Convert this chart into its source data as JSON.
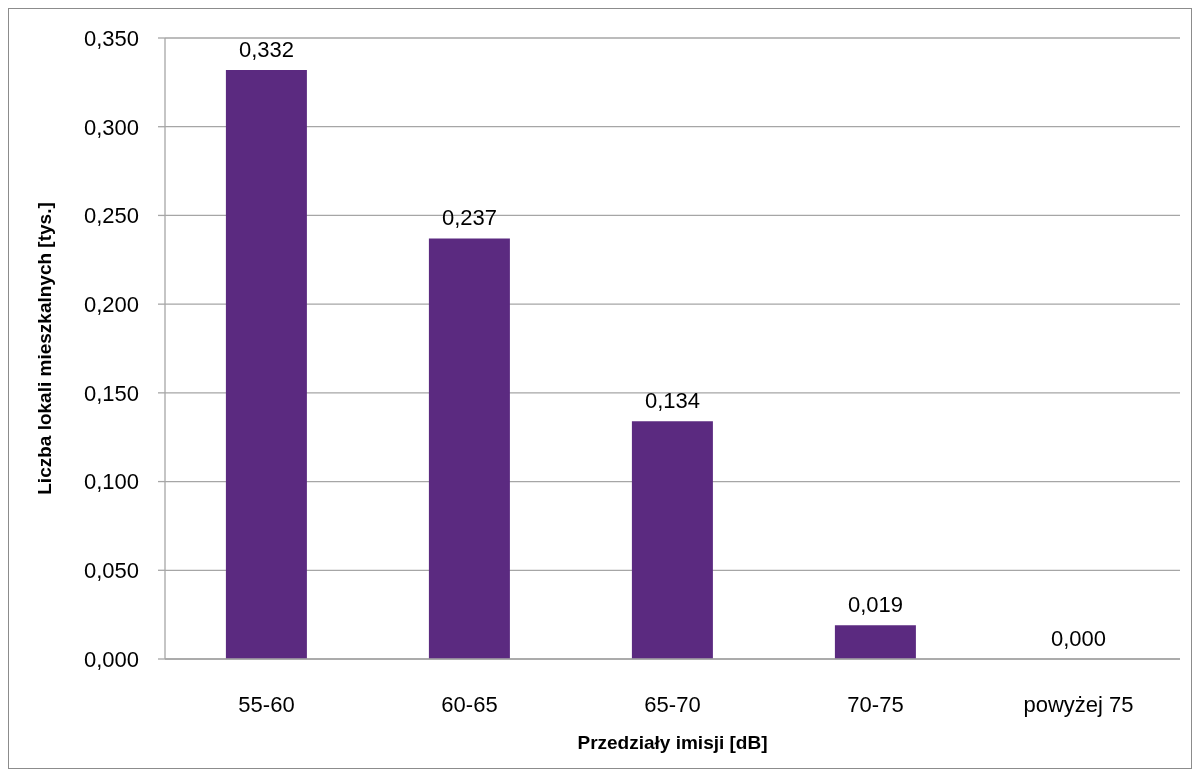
{
  "chart_data": {
    "type": "bar",
    "xlabel": "Przedziały imisji [dB]",
    "ylabel": "Liczba lokali mieszkalnych [tys.]",
    "categories": [
      "55-60",
      "60-65",
      "65-70",
      "70-75",
      "powyżej 75"
    ],
    "values": [
      0.332,
      0.237,
      0.134,
      0.019,
      0.0
    ],
    "value_labels": [
      "0,332",
      "0,237",
      "0,134",
      "0,019",
      "0,000"
    ],
    "color": "#5b2a80",
    "ylim": [
      0,
      0.35
    ],
    "yticks": [
      {
        "value": 0,
        "label": "0,000"
      },
      {
        "value": 0.05,
        "label": "0,050"
      },
      {
        "value": 0.1,
        "label": "0,100"
      },
      {
        "value": 0.15,
        "label": "0,150"
      },
      {
        "value": 0.2,
        "label": "0,200"
      },
      {
        "value": 0.25,
        "label": "0,250"
      },
      {
        "value": 0.3,
        "label": "0,300"
      },
      {
        "value": 0.35,
        "label": "0,350"
      }
    ],
    "grid": "y"
  }
}
